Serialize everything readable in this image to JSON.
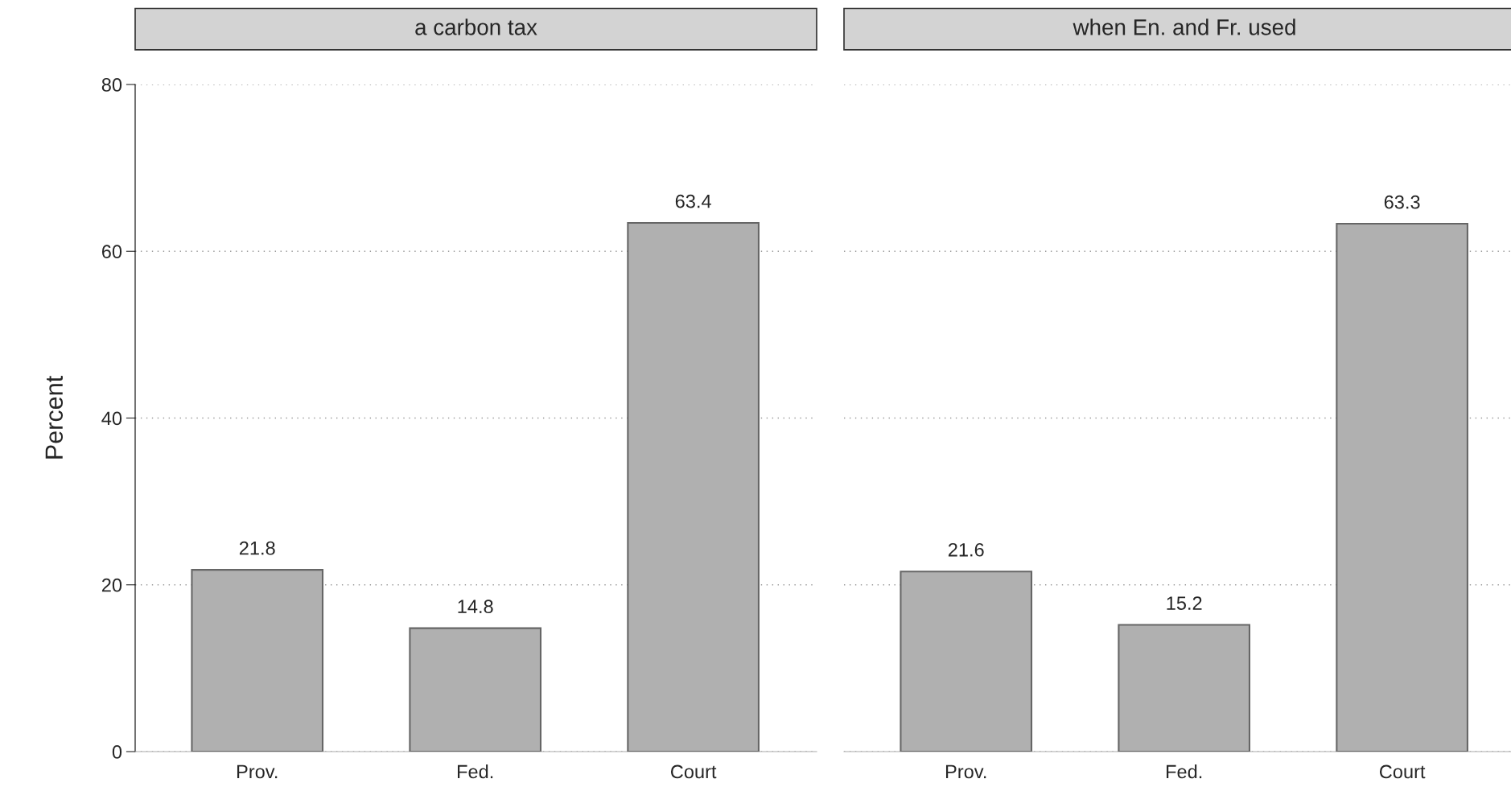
{
  "chart_data": [
    {
      "type": "bar",
      "title": "a carbon tax",
      "ylabel": "Percent",
      "categories": [
        "Prov.",
        "Fed.",
        "Court"
      ],
      "series": [
        {
          "color": "#b0b0b0",
          "values": [
            21.8,
            14.8,
            63.4
          ]
        }
      ],
      "ylim": [
        0,
        80
      ],
      "yticks": [
        0,
        20,
        40,
        60,
        80
      ],
      "grid": "y",
      "data_labels": true
    },
    {
      "type": "bar",
      "title": "when En. and Fr. used",
      "categories": [
        "Prov.",
        "Fed.",
        "Court"
      ],
      "series": [
        {
          "color": "#b0b0b0",
          "values": [
            21.6,
            15.2,
            63.3
          ]
        }
      ],
      "ylim": [
        0,
        80
      ],
      "yticks": [
        0,
        20,
        40,
        60,
        80
      ],
      "grid": "y",
      "data_labels": true,
      "tick_labels": "x"
    }
  ]
}
